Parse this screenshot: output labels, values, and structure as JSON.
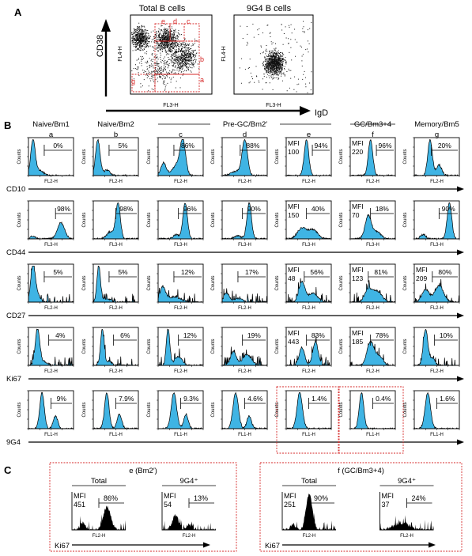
{
  "panel_labels": {
    "a": "A",
    "b": "B",
    "c": "C"
  },
  "panel_a": {
    "titles": [
      "Total B cells",
      "9G4 B cells"
    ],
    "ylabel_top": "CD38",
    "ylabel_axis": "FL4-H",
    "xlabel_axis": "FL3-H",
    "xlabel_right": "IgD",
    "gates": [
      "e",
      "d",
      "c",
      "b",
      "a",
      "g"
    ]
  },
  "panel_b": {
    "columns": [
      {
        "title": "Naive/Bm1",
        "letter": "a"
      },
      {
        "title": "Naive/Bm2",
        "letter": "b"
      },
      {
        "title": "",
        "letter": "c"
      },
      {
        "title": "",
        "letter": "d"
      },
      {
        "title": "",
        "letter": "e"
      },
      {
        "title": "GC/Bm3+4",
        "letter": "f"
      },
      {
        "title": "Memory/Bm5",
        "letter": "g"
      }
    ],
    "pregc_title": "Pre-GC/Bm2′",
    "ylabel": "Counts",
    "rows": [
      {
        "marker": "CD10",
        "axis": "FL2-H",
        "cells": [
          {
            "pct": "0%",
            "mfi": ""
          },
          {
            "pct": "5%",
            "mfi": ""
          },
          {
            "pct": "86%",
            "mfi": ""
          },
          {
            "pct": "88%",
            "mfi": ""
          },
          {
            "pct": "94%",
            "mfi": "100"
          },
          {
            "pct": "96%",
            "mfi": "220"
          },
          {
            "pct": "20%",
            "mfi": ""
          }
        ]
      },
      {
        "marker": "CD44",
        "axis": "FL3-H",
        "cells": [
          {
            "pct": "98%",
            "mfi": ""
          },
          {
            "pct": "98%",
            "mfi": ""
          },
          {
            "pct": "96%",
            "mfi": ""
          },
          {
            "pct": "90%",
            "mfi": ""
          },
          {
            "pct": "40%",
            "mfi": "150"
          },
          {
            "pct": "18%",
            "mfi": "70"
          },
          {
            "pct": "90%",
            "mfi": ""
          }
        ]
      },
      {
        "marker": "CD27",
        "axis": "FL2-H",
        "cells": [
          {
            "pct": "5%",
            "mfi": ""
          },
          {
            "pct": "5%",
            "mfi": ""
          },
          {
            "pct": "12%",
            "mfi": ""
          },
          {
            "pct": "17%",
            "mfi": ""
          },
          {
            "pct": "56%",
            "mfi": "48"
          },
          {
            "pct": "81%",
            "mfi": "123"
          },
          {
            "pct": "80%",
            "mfi": "209"
          }
        ]
      },
      {
        "marker": "Ki67",
        "axis": "FL2-H",
        "cells": [
          {
            "pct": "4%",
            "mfi": ""
          },
          {
            "pct": "6%",
            "mfi": ""
          },
          {
            "pct": "12%",
            "mfi": ""
          },
          {
            "pct": "19%",
            "mfi": ""
          },
          {
            "pct": "83%",
            "mfi": "443"
          },
          {
            "pct": "78%",
            "mfi": "185"
          },
          {
            "pct": "10%",
            "mfi": ""
          }
        ]
      },
      {
        "marker": "9G4",
        "axis": "FL1-H",
        "cells": [
          {
            "pct": "9%",
            "mfi": ""
          },
          {
            "pct": "7.9%",
            "mfi": ""
          },
          {
            "pct": "9.3%",
            "mfi": ""
          },
          {
            "pct": "4.6%",
            "mfi": ""
          },
          {
            "pct": "1.4%",
            "mfi": ""
          },
          {
            "pct": "0.4%",
            "mfi": ""
          },
          {
            "pct": "1.6%",
            "mfi": ""
          }
        ]
      }
    ]
  },
  "panel_c": {
    "groups": [
      {
        "title": "e (Bm2′)",
        "marker": "Ki67",
        "plots": [
          {
            "subtitle": "Total",
            "mfi_label": "MFI",
            "mfi": "451",
            "pct": "86%",
            "axis": "FL2-H"
          },
          {
            "subtitle": "9G4⁺",
            "mfi_label": "MFI",
            "mfi": "54",
            "pct": "13%",
            "axis": "FL2-H"
          }
        ]
      },
      {
        "title": "f (GC/Bm3+4)",
        "marker": "Ki67",
        "plots": [
          {
            "subtitle": "Total",
            "mfi_label": "MFI",
            "mfi": "251",
            "pct": "90%",
            "axis": "FL2-H"
          },
          {
            "subtitle": "9G4⁺",
            "mfi_label": "MFI",
            "mfi": "37",
            "pct": "24%",
            "axis": "FL2-H"
          }
        ]
      }
    ]
  },
  "colors": {
    "fill": "#3fb4e4",
    "gate": "#d62828",
    "black": "#000000"
  }
}
